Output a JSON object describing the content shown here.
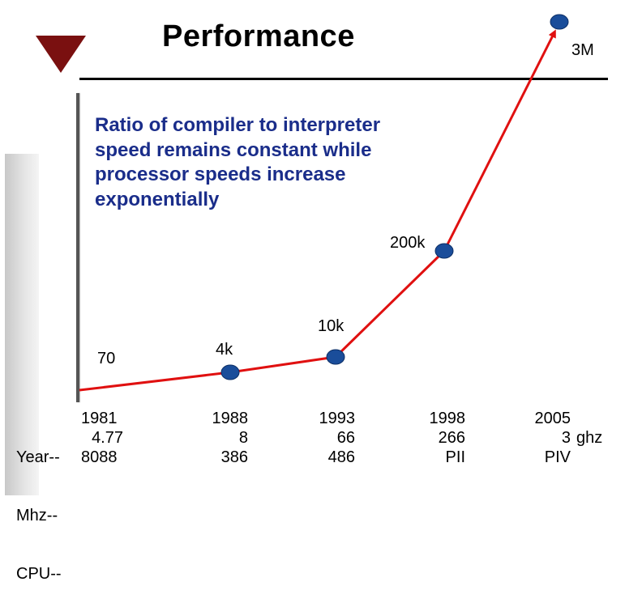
{
  "title": "Performance",
  "subtitle": [
    "Ratio of compiler to interpreter",
    "speed remains constant while",
    "processor speeds increase",
    "exponentially"
  ],
  "row_labels": [
    "Year--",
    "Mhz--",
    "CPU--"
  ],
  "colors": {
    "line": "#e01010",
    "marker": "#1a4d9a",
    "triangle": "#7a1010",
    "subtitle": "#1a2d8a"
  },
  "chart_data": {
    "type": "line",
    "title": "Performance",
    "categories": [
      "1981",
      "1988",
      "1993",
      "1998",
      "2005"
    ],
    "point_labels": [
      "70",
      "4k",
      "10k",
      "200k",
      "3M"
    ],
    "values": [
      70,
      4000,
      10000,
      200000,
      3000000
    ],
    "table": {
      "year": [
        "1981",
        "1988",
        "1993",
        "1998",
        "2005"
      ],
      "mhz": [
        "4.77",
        "8",
        "66",
        "266",
        "3"
      ],
      "mhz_unit_last": "ghz",
      "cpu": [
        "8088",
        "386",
        "486",
        "PII",
        "PIV"
      ]
    }
  }
}
